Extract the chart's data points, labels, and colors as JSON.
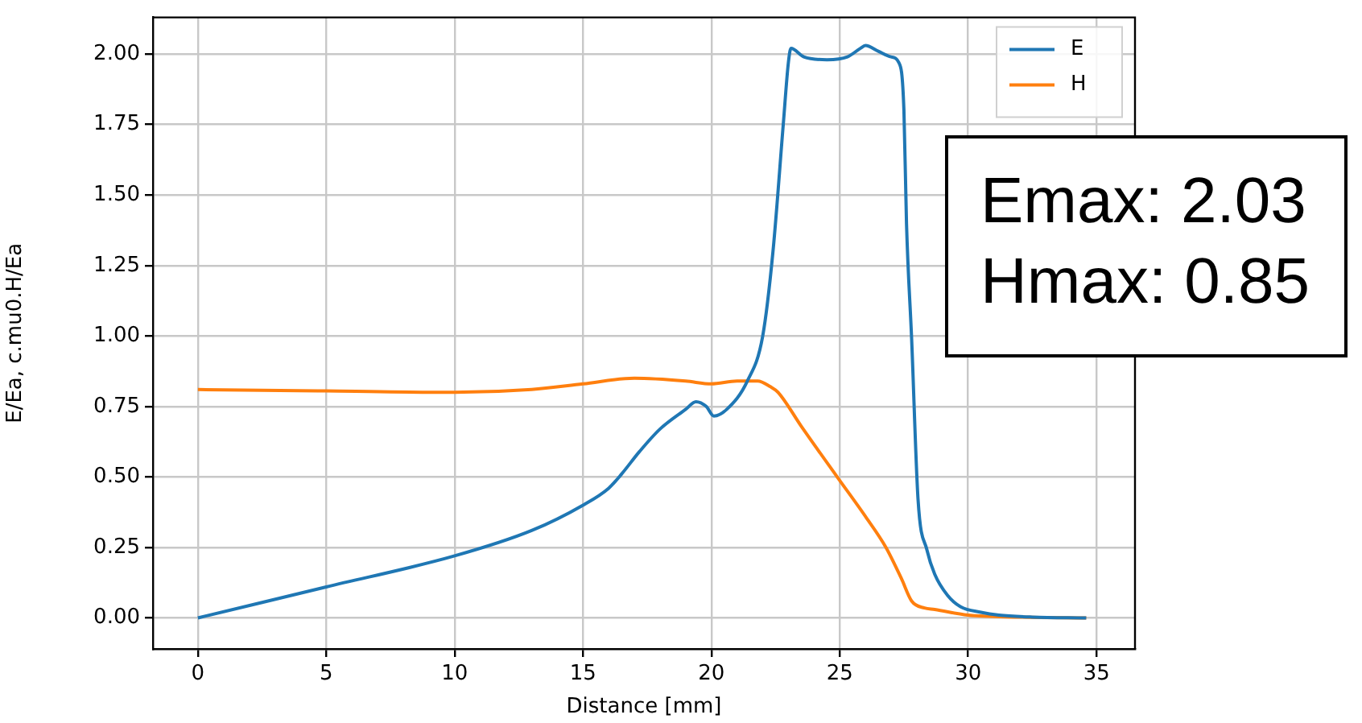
{
  "chart_data": {
    "type": "line",
    "xlabel": "Distance [mm]",
    "ylabel": "E/Ea, c.mu0.H/Ea",
    "xlim": [
      -1.75,
      36.5
    ],
    "xticks": [
      0,
      5,
      10,
      15,
      20,
      25,
      30,
      35
    ],
    "ylim": [
      -0.11,
      2.13
    ],
    "yticks": [
      {
        "value": 0,
        "label": "0.00"
      },
      {
        "value": 0.25,
        "label": "0.25"
      },
      {
        "value": 0.5,
        "label": "0.50"
      },
      {
        "value": 0.75,
        "label": "0.75"
      },
      {
        "value": 1,
        "label": "1.00"
      },
      {
        "value": 1.25,
        "label": "1.25"
      },
      {
        "value": 1.5,
        "label": "1.50"
      },
      {
        "value": 1.75,
        "label": "1.75"
      },
      {
        "value": 2,
        "label": "2.00"
      }
    ],
    "grid": true,
    "legend": "top right",
    "marker": "none",
    "line_style": "solid",
    "series": [
      {
        "name": "E",
        "color": "#1f77b4",
        "x": [
          0,
          5,
          10,
          13,
          15,
          16,
          16.5,
          17.2,
          18,
          19,
          19.4,
          19.8,
          20.1,
          20.6,
          21.4,
          22,
          22.4,
          22.8,
          23,
          23.1,
          23.6,
          24.5,
          25.3,
          25.8,
          26,
          26.5,
          27,
          27.3,
          27.5,
          27.6,
          27.8,
          28.05,
          28.4,
          28.7,
          29.2,
          29.7,
          30.5,
          31.2,
          32.5,
          34.6
        ],
        "values": [
          0,
          0.11,
          0.22,
          0.31,
          0.4,
          0.46,
          0.51,
          0.59,
          0.67,
          0.74,
          0.767,
          0.75,
          0.716,
          0.74,
          0.84,
          1.0,
          1.3,
          1.75,
          1.97,
          2.02,
          1.99,
          1.98,
          1.99,
          2.02,
          2.03,
          2.01,
          1.99,
          1.97,
          1.8,
          1.4,
          0.99,
          0.42,
          0.24,
          0.155,
          0.08,
          0.04,
          0.02,
          0.01,
          0.003,
          0
        ]
      },
      {
        "name": "H",
        "color": "#ff7f0e",
        "x": [
          0,
          5,
          10,
          13,
          15,
          17,
          19,
          20,
          21,
          21.8,
          22.3,
          22.6,
          23.5,
          24.9,
          26,
          26.8,
          27.4,
          27.8,
          28.3,
          28.7,
          30,
          32,
          34.6
        ],
        "values": [
          0.81,
          0.805,
          0.8,
          0.81,
          0.83,
          0.85,
          0.84,
          0.83,
          0.84,
          0.84,
          0.82,
          0.8,
          0.68,
          0.5,
          0.36,
          0.25,
          0.14,
          0.06,
          0.035,
          0.03,
          0.01,
          0.003,
          0
        ]
      }
    ],
    "annotations": [
      "Emax: 2.03",
      "Hmax: 0.85"
    ]
  }
}
